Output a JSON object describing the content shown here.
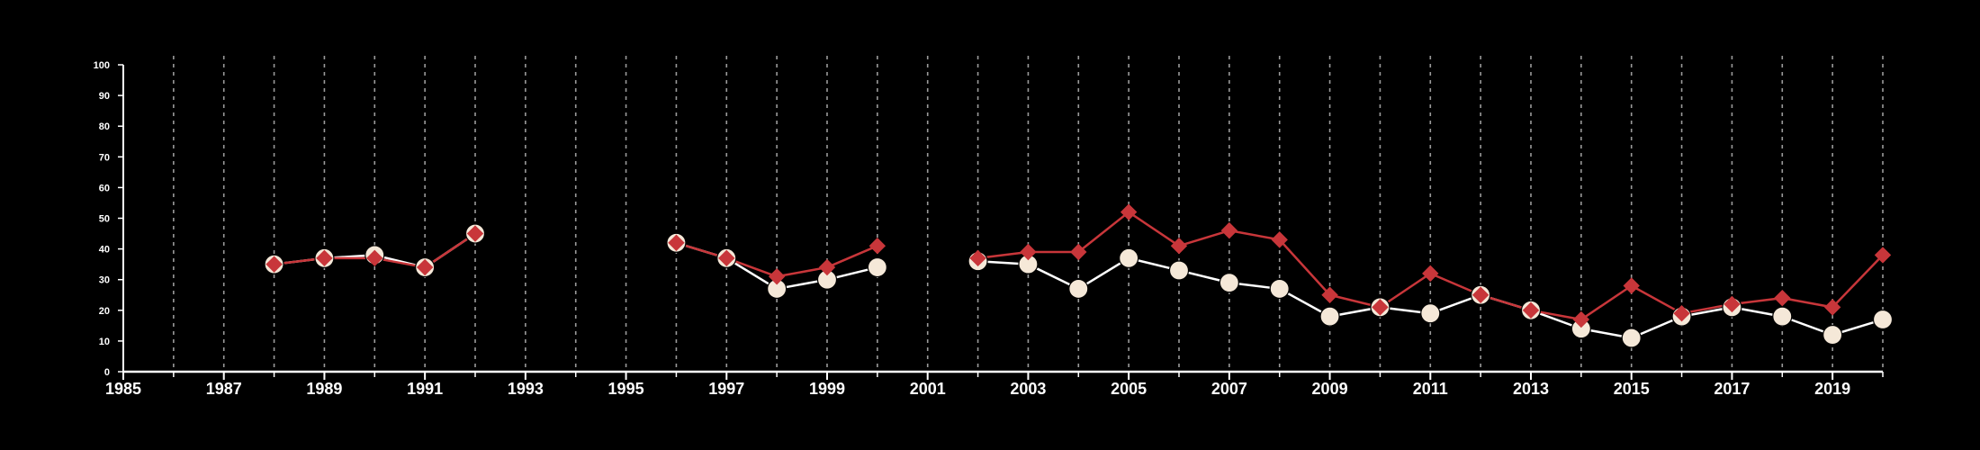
{
  "chart_data": {
    "type": "line",
    "x_ticks": [
      1985,
      1987,
      1989,
      1991,
      1993,
      1995,
      1997,
      1999,
      2001,
      2003,
      2005,
      2007,
      2009,
      2011,
      2013,
      2015,
      2017,
      2019
    ],
    "y_ticks": [
      0,
      10,
      20,
      30,
      40,
      50,
      60,
      70,
      80,
      90,
      100
    ],
    "xlim": [
      1985,
      2020
    ],
    "ylim": [
      0,
      100
    ],
    "grid": "vertical-dashed",
    "colors": {
      "background": "#000000",
      "axis": "#ffffff",
      "grid": "#9a9a9a"
    },
    "series": [
      {
        "marker": "circle",
        "color": "#f5e8d8",
        "line_color": "#ffffff",
        "x": [
          1988,
          1989,
          1990,
          1991,
          1992,
          1996,
          1997,
          1998,
          1999,
          2000,
          2002,
          2003,
          2004,
          2005,
          2006,
          2007,
          2008,
          2009,
          2010,
          2011,
          2012,
          2013,
          2014,
          2015,
          2016,
          2017,
          2018,
          2019,
          2020
        ],
        "values": [
          35,
          37,
          38,
          34,
          45,
          42,
          37,
          27,
          30,
          34,
          36,
          35,
          27,
          37,
          33,
          29,
          27,
          18,
          21,
          19,
          25,
          20,
          14,
          11,
          18,
          21,
          18,
          12,
          17
        ]
      },
      {
        "marker": "diamond",
        "color": "#c8363a",
        "line_color": "#c8363a",
        "x": [
          1988,
          1989,
          1990,
          1991,
          1992,
          1996,
          1997,
          1998,
          1999,
          2000,
          2002,
          2003,
          2004,
          2005,
          2006,
          2007,
          2008,
          2009,
          2010,
          2011,
          2012,
          2013,
          2014,
          2015,
          2016,
          2017,
          2018,
          2019,
          2020
        ],
        "values": [
          35,
          37,
          37,
          34,
          45,
          42,
          37,
          31,
          34,
          41,
          37,
          39,
          39,
          52,
          41,
          46,
          43,
          25,
          21,
          32,
          25,
          20,
          17,
          28,
          19,
          22,
          24,
          21,
          38
        ]
      }
    ]
  }
}
